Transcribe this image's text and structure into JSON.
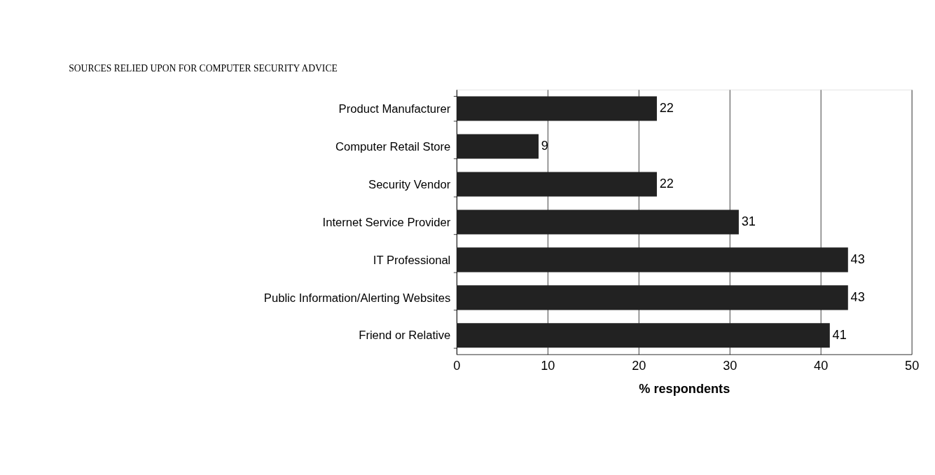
{
  "chart_data": {
    "type": "bar",
    "orientation": "horizontal",
    "title": "SOURCES RELIED UPON FOR COMPUTER SECURITY ADVICE",
    "xlabel": "% respondents",
    "categories": [
      "Product Manufacturer",
      "Computer Retail Store",
      "Security Vendor",
      "Internet Service Provider",
      "IT Professional",
      "Public Information/Alerting Websites",
      "Friend or Relative"
    ],
    "values": [
      22,
      9,
      22,
      31,
      43,
      43,
      41
    ],
    "color": "#222222",
    "xlim": [
      0,
      50
    ],
    "xticks": [
      0,
      10,
      20,
      30,
      40,
      50
    ],
    "grid": "x",
    "data_labels": true
  }
}
